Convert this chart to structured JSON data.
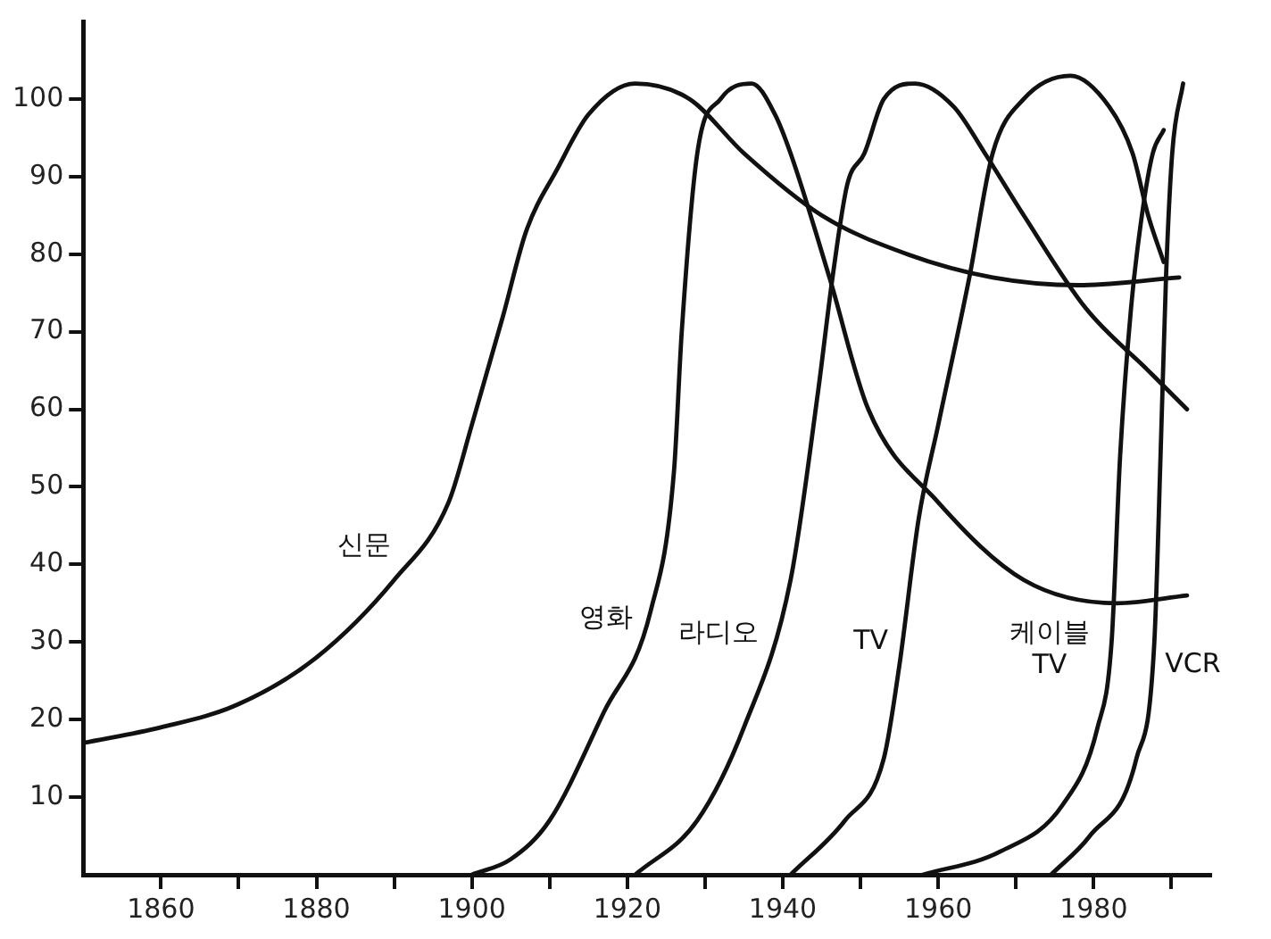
{
  "chart_data": {
    "type": "line",
    "xlim": [
      1850,
      1995
    ],
    "xticks": [
      {
        "value": 1860,
        "label": "1860"
      },
      {
        "value": 1870,
        "label": null
      },
      {
        "value": 1880,
        "label": "1880"
      },
      {
        "value": 1890,
        "label": null
      },
      {
        "value": 1900,
        "label": "1900"
      },
      {
        "value": 1910,
        "label": null
      },
      {
        "value": 1920,
        "label": "1920"
      },
      {
        "value": 1930,
        "label": null
      },
      {
        "value": 1940,
        "label": "1940"
      },
      {
        "value": 1950,
        "label": null
      },
      {
        "value": 1960,
        "label": "1960"
      },
      {
        "value": 1970,
        "label": null
      },
      {
        "value": 1980,
        "label": "1980"
      },
      {
        "value": 1990,
        "label": null
      }
    ],
    "ylim": [
      0,
      110
    ],
    "yticks": [
      10,
      20,
      30,
      40,
      50,
      60,
      70,
      80,
      90,
      100
    ],
    "grid": false,
    "legend": false,
    "marker": "none",
    "line_style": "solid",
    "series": [
      {
        "name": "신문",
        "color": "#111111",
        "x": [
          1850,
          1860,
          1870,
          1880,
          1890,
          1897,
          1900,
          1904,
          1907,
          1911,
          1915,
          1921,
          1928,
          1935,
          1945,
          1956,
          1967,
          1978,
          1991
        ],
        "values": [
          17,
          19,
          22,
          28,
          38,
          48,
          58,
          72,
          83,
          91,
          98,
          102,
          100,
          93,
          85,
          80,
          77,
          76,
          77
        ]
      },
      {
        "name": "영화",
        "color": "#111111",
        "x": [
          1900,
          1905,
          1910,
          1917,
          1923,
          1926,
          1927,
          1929,
          1932,
          1936,
          1939,
          1941,
          1946,
          1951,
          1960,
          1971,
          1983,
          1992
        ],
        "values": [
          0,
          2,
          7,
          21,
          34,
          52,
          70,
          93,
          100,
          102,
          98,
          93,
          77,
          60,
          48,
          38,
          35,
          36
        ]
      },
      {
        "name": "라디오",
        "color": "#111111",
        "x": [
          1921,
          1929,
          1935,
          1941,
          1944.5,
          1946.4,
          1948.3,
          1950.5,
          1953,
          1957,
          1962,
          1966,
          1971,
          1979,
          1987,
          1992
        ],
        "values": [
          0,
          7,
          19,
          38,
          62,
          77,
          89,
          93,
          100,
          102,
          99,
          93,
          85,
          73,
          65,
          60
        ]
      },
      {
        "name": "TV",
        "color": "#111111",
        "x": [
          1941,
          1948,
          1953,
          1955,
          1957.5,
          1960,
          1964,
          1967,
          1971,
          1977,
          1982,
          1985,
          1987,
          1989
        ],
        "values": [
          0,
          7,
          15,
          27,
          46,
          58,
          77,
          93,
          100,
          103,
          99,
          93,
          85,
          79
        ]
      },
      {
        "name": "케이블 TV",
        "color": "#111111",
        "x": [
          1958,
          1968,
          1976,
          1980.5,
          1982.3,
          1983.4,
          1984.8,
          1986.2,
          1987.6,
          1989
        ],
        "values": [
          0,
          3,
          9,
          19,
          30,
          54,
          73,
          85,
          93,
          96
        ]
      },
      {
        "name": "VCR",
        "color": "#111111",
        "x": [
          1974.5,
          1979.5,
          1985.5,
          1987.8,
          1988.6,
          1989.3,
          1990.1,
          1991.5
        ],
        "values": [
          0,
          5,
          15,
          30,
          54,
          77,
          93,
          102
        ]
      }
    ]
  }
}
